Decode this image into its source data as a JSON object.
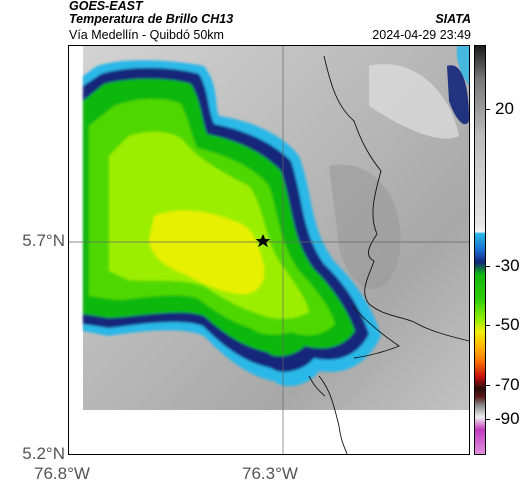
{
  "header": {
    "satellite": "GOES-EAST",
    "product": "Temperatura de Brillo CH13",
    "route": "Vía Medellín - Quibdó 50km",
    "organization": "SIATA",
    "datetime": "2024-04-29 23:49"
  },
  "axes": {
    "y_ticks": [
      "5.7°N",
      "5.2°N"
    ],
    "x_ticks": [
      "76.8°W",
      "76.3°W"
    ]
  },
  "colorbar": {
    "ticks": [
      "20",
      "-30",
      "-50",
      "-70",
      "-90"
    ],
    "colors": {
      "top": "#1a1a1a",
      "gray_light": "#e6e6e6",
      "cyan": "#2ab8e8",
      "blue": "#12267a",
      "green": "#11b811",
      "lime": "#8fee00",
      "yellow": "#f2ee10",
      "orange": "#ff7a00",
      "red": "#c81010",
      "dark": "#2a0a0a",
      "magenta": "#c03cc0"
    }
  },
  "map": {
    "marker": "star-icon",
    "cloud_colors": [
      "#12267a",
      "#1e8fd8",
      "#11b811",
      "#4fd800",
      "#9cee00",
      "#e6f000"
    ]
  }
}
